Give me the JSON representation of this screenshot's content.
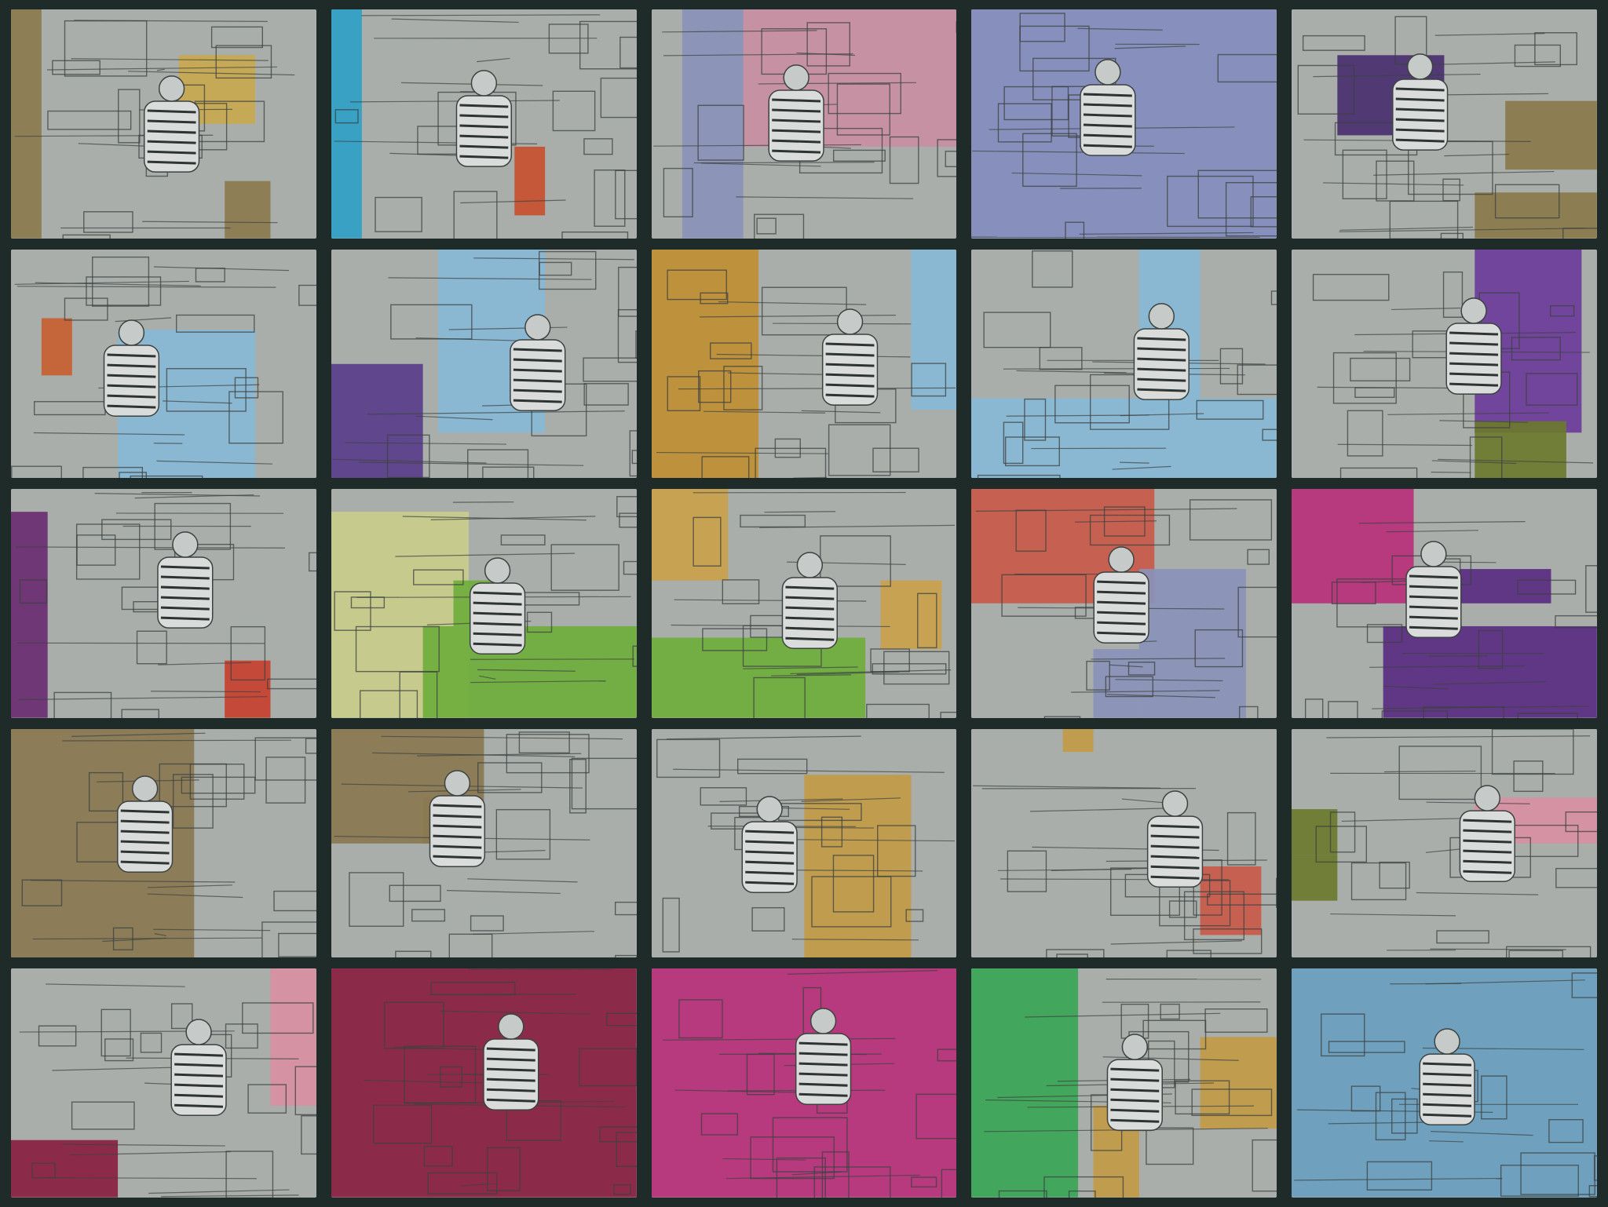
{
  "grid": {
    "rows": 5,
    "cols": 5,
    "background": "#1f2b28",
    "tile_base": "#a9aeab",
    "line_color": "#3c4240"
  },
  "tiles": [
    {
      "color": "#c9a84e",
      "secondary": "#8c7a4e",
      "regions": [
        [
          0.55,
          0.2,
          0.25,
          0.3
        ],
        [
          0.0,
          0.0,
          0.1,
          1.0
        ],
        [
          0.7,
          0.75,
          0.15,
          0.25
        ]
      ]
    },
    {
      "color": "#2f9fc6",
      "secondary": "#c7502f",
      "regions": [
        [
          0.0,
          0.0,
          0.1,
          1.0
        ],
        [
          0.6,
          0.6,
          0.1,
          0.3
        ]
      ]
    },
    {
      "color": "#c98fa2",
      "secondary": "#8a92b8",
      "regions": [
        [
          0.3,
          0.0,
          0.7,
          0.6
        ],
        [
          0.1,
          0.0,
          0.2,
          1.0
        ]
      ]
    },
    {
      "color": "#848dbd",
      "secondary": "#848dbd",
      "regions": [
        [
          0.0,
          0.0,
          1.0,
          1.0
        ]
      ]
    },
    {
      "color": "#4a2f6e",
      "secondary": "#8a7a4a",
      "regions": [
        [
          0.15,
          0.2,
          0.35,
          0.35
        ],
        [
          0.7,
          0.4,
          0.3,
          0.3
        ],
        [
          0.6,
          0.8,
          0.4,
          0.2
        ]
      ]
    },
    {
      "color": "#88b7d4",
      "secondary": "#c7602f",
      "regions": [
        [
          0.35,
          0.35,
          0.45,
          0.65
        ],
        [
          0.1,
          0.3,
          0.1,
          0.25
        ]
      ]
    },
    {
      "color": "#88b7d4",
      "secondary": "#5a3e8a",
      "regions": [
        [
          0.35,
          0.0,
          0.35,
          0.8
        ],
        [
          0.0,
          0.5,
          0.3,
          0.5
        ]
      ]
    },
    {
      "color": "#c08e33",
      "secondary": "#88b7d4",
      "regions": [
        [
          0.0,
          0.0,
          0.35,
          1.0
        ],
        [
          0.85,
          0.0,
          0.15,
          0.7
        ]
      ]
    },
    {
      "color": "#88b7d4",
      "secondary": "#88b7d4",
      "regions": [
        [
          0.0,
          0.65,
          1.0,
          0.35
        ],
        [
          0.55,
          0.0,
          0.2,
          0.7
        ]
      ]
    },
    {
      "color": "#6e3c9a",
      "secondary": "#6b7a2e",
      "regions": [
        [
          0.6,
          0.0,
          0.35,
          0.8
        ],
        [
          0.6,
          0.75,
          0.3,
          0.25
        ]
      ]
    },
    {
      "color": "#6a2c70",
      "secondary": "#c7402f",
      "regions": [
        [
          0.0,
          0.1,
          0.12,
          0.9
        ],
        [
          0.7,
          0.75,
          0.15,
          0.25
        ]
      ]
    },
    {
      "color": "#c9cc8a",
      "secondary": "#6fae3c",
      "regions": [
        [
          0.0,
          0.1,
          0.45,
          0.9
        ],
        [
          0.3,
          0.6,
          0.7,
          0.4
        ],
        [
          0.4,
          0.4,
          0.15,
          0.2
        ]
      ]
    },
    {
      "color": "#6fae3c",
      "secondary": "#c9a14a",
      "regions": [
        [
          0.0,
          0.65,
          0.7,
          0.35
        ],
        [
          0.0,
          0.0,
          0.25,
          0.4
        ],
        [
          0.75,
          0.4,
          0.2,
          0.3
        ]
      ]
    },
    {
      "color": "#c95a4a",
      "secondary": "#8a92b8",
      "regions": [
        [
          0.0,
          0.0,
          0.6,
          0.5
        ],
        [
          0.55,
          0.35,
          0.35,
          0.65
        ],
        [
          0.4,
          0.7,
          0.15,
          0.3
        ]
      ]
    },
    {
      "color": "#b8307a",
      "secondary": "#5a2c80",
      "regions": [
        [
          0.0,
          0.0,
          0.4,
          0.5
        ],
        [
          0.3,
          0.6,
          0.7,
          0.4
        ],
        [
          0.55,
          0.35,
          0.3,
          0.15
        ]
      ]
    },
    {
      "color": "#8a7850",
      "secondary": "#8a7850",
      "regions": [
        [
          0.0,
          0.0,
          0.6,
          1.0
        ]
      ]
    },
    {
      "color": "#8a7850",
      "secondary": "#8a7850",
      "regions": [
        [
          0.0,
          0.0,
          0.5,
          0.5
        ],
        [
          0.3,
          0.3,
          0.15,
          0.2
        ]
      ]
    },
    {
      "color": "#c29a45",
      "secondary": "#c29a45",
      "regions": [
        [
          0.5,
          0.2,
          0.35,
          0.8
        ]
      ]
    },
    {
      "color": "#c95a4a",
      "secondary": "#c29a45",
      "regions": [
        [
          0.75,
          0.6,
          0.2,
          0.3
        ],
        [
          0.3,
          0.0,
          0.1,
          0.1
        ]
      ]
    },
    {
      "color": "#d88fa2",
      "secondary": "#6b7a2e",
      "regions": [
        [
          0.6,
          0.3,
          0.4,
          0.2
        ],
        [
          0.0,
          0.35,
          0.15,
          0.2
        ],
        [
          0.0,
          0.55,
          0.15,
          0.2
        ]
      ]
    },
    {
      "color": "#d88fa2",
      "secondary": "#8a2040",
      "regions": [
        [
          0.85,
          0.0,
          0.15,
          0.6
        ],
        [
          0.0,
          0.75,
          0.35,
          0.25
        ]
      ]
    },
    {
      "color": "#8a2040",
      "secondary": "#8a2040",
      "regions": [
        [
          0.0,
          0.0,
          1.0,
          1.0
        ]
      ]
    },
    {
      "color": "#b8307a",
      "secondary": "#b8307a",
      "regions": [
        [
          0.0,
          0.0,
          1.0,
          1.0
        ]
      ]
    },
    {
      "color": "#3aa656",
      "secondary": "#c29a45",
      "regions": [
        [
          0.0,
          0.0,
          0.35,
          1.0
        ],
        [
          0.75,
          0.3,
          0.25,
          0.4
        ],
        [
          0.4,
          0.6,
          0.15,
          0.4
        ]
      ]
    },
    {
      "color": "#6a9fc0",
      "secondary": "#4a2f8a",
      "regions": [
        [
          0.0,
          0.0,
          1.0,
          1.0
        ]
      ]
    }
  ]
}
